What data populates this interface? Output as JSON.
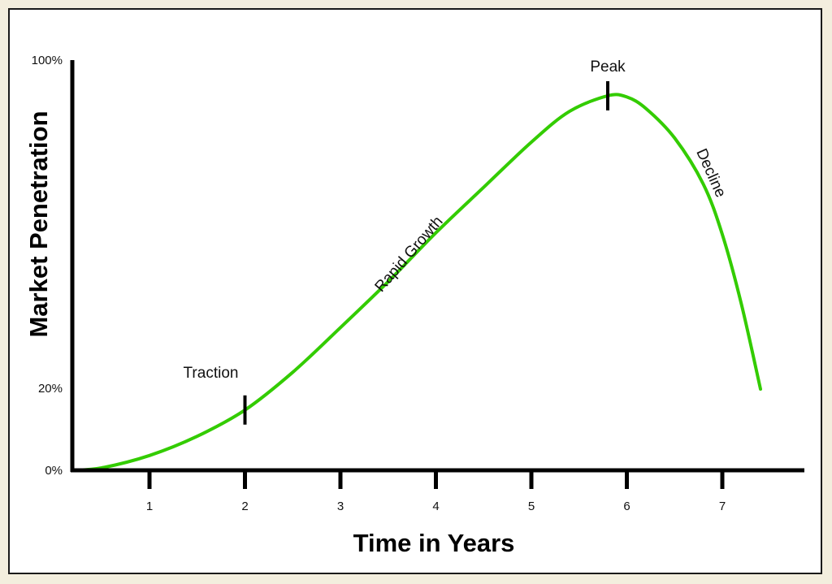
{
  "chart_data": {
    "type": "line",
    "title": "",
    "xlabel": "Time in Years",
    "ylabel": "Market Penetration",
    "xlim": [
      0.2,
      7.8
    ],
    "ylim": [
      0,
      100
    ],
    "x_ticks": [
      1,
      2,
      3,
      4,
      5,
      6,
      7
    ],
    "x_tick_labels": [
      "1",
      "2",
      "3",
      "4",
      "5",
      "6",
      "7"
    ],
    "y_ticks": [
      0,
      20,
      100
    ],
    "y_tick_labels": [
      "0%",
      "20%",
      "100%"
    ],
    "grid": false,
    "legend": "none",
    "series": [
      {
        "color": "#33cc00",
        "x": [
          0.2,
          0.5,
          1.0,
          1.5,
          2.0,
          2.5,
          3.0,
          3.5,
          4.0,
          4.5,
          5.0,
          5.4,
          5.8,
          6.0,
          6.2,
          6.5,
          6.8,
          7.0,
          7.2,
          7.4
        ],
        "y": [
          0,
          0.6,
          3.6,
          8.3,
          14.7,
          23.9,
          34.8,
          46.0,
          57.9,
          69.0,
          80.0,
          87.5,
          91.3,
          91.0,
          88.2,
          81.0,
          69.8,
          57.5,
          40.5,
          19.8
        ]
      }
    ],
    "annotations": [
      {
        "text": "Traction",
        "x": 2.0,
        "y": 14.7
      },
      {
        "text": "Rapid Growth",
        "x": 3.5,
        "y": 46.0
      },
      {
        "text": "Peak",
        "x": 5.8,
        "y": 91.3
      },
      {
        "text": "Decline",
        "x": 6.7,
        "y": 72.0
      }
    ]
  }
}
